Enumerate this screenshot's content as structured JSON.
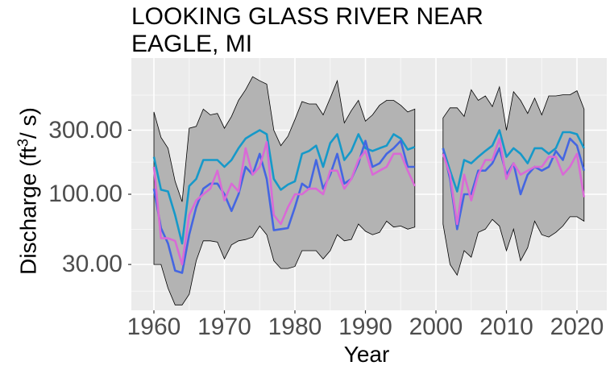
{
  "chart_data": {
    "type": "line",
    "title": [
      "LOOKING GLASS RIVER NEAR",
      "EAGLE, MI"
    ],
    "xlabel": "Year",
    "ylabel": {
      "prefix": "Discharge (ft",
      "sup": "3",
      "suffix": "/ s)"
    },
    "yscale": "log",
    "ylim": [
      12,
      1000
    ],
    "xlim": [
      1957.5,
      2023.5
    ],
    "yticks": [
      30,
      100,
      300
    ],
    "ytick_labels": [
      "30.00",
      "100.00",
      "300.00"
    ],
    "xticks": [
      1960,
      1970,
      1980,
      1990,
      2000,
      2010,
      2020
    ],
    "xtick_labels": [
      "1960",
      "1970",
      "1980",
      "1990",
      "2000",
      "2010",
      "2020"
    ],
    "grid": true,
    "legend": "none",
    "colors": {
      "band": "#b3b3b3",
      "panel": "#ebebeb",
      "cyan": "#1699c9",
      "blue": "#4466e2",
      "magenta": "#d96ad6"
    },
    "segments": [
      {
        "x": [
          1960,
          1961,
          1962,
          1963,
          1964,
          1965,
          1966,
          1967,
          1968,
          1969,
          1970,
          1971,
          1972,
          1973,
          1974,
          1975,
          1976,
          1977,
          1978,
          1979,
          1980,
          1981,
          1982,
          1983,
          1984,
          1985,
          1986,
          1987,
          1988,
          1989,
          1990,
          1991,
          1992,
          1993,
          1994,
          1995,
          1996,
          1997
        ],
        "band_upper": [
          410,
          265,
          220,
          125,
          88,
          310,
          320,
          430,
          390,
          400,
          310,
          380,
          500,
          600,
          750,
          700,
          660,
          300,
          230,
          270,
          360,
          490,
          470,
          470,
          390,
          520,
          700,
          340,
          420,
          500,
          350,
          390,
          460,
          500,
          500,
          460,
          410,
          430
        ],
        "band_lower": [
          30,
          30,
          20,
          15,
          15,
          18,
          32,
          45,
          45,
          44,
          33,
          42,
          45,
          46,
          48,
          58,
          50,
          32,
          28,
          28,
          29,
          38,
          38,
          38,
          33,
          38,
          50,
          45,
          46,
          60,
          53,
          50,
          52,
          63,
          57,
          58,
          55,
          57
        ],
        "series": [
          {
            "color": "cyan",
            "values": [
              190,
              108,
              105,
              70,
              43,
              115,
              130,
              180,
              180,
              180,
              160,
              180,
              220,
              260,
              280,
              300,
              280,
              130,
              108,
              118,
              125,
              200,
              210,
              230,
              160,
              240,
              280,
              180,
              210,
              280,
              220,
              210,
              220,
              230,
              280,
              260,
              215,
              225
            ]
          },
          {
            "color": "blue",
            "values": [
              110,
              56,
              43,
              27,
              26,
              50,
              80,
              110,
              120,
              120,
              100,
              75,
              100,
              160,
              140,
              200,
              130,
              54,
              55,
              56,
              80,
              120,
              110,
              180,
              110,
              140,
              200,
              120,
              130,
              170,
              250,
              160,
              170,
              200,
              220,
              250,
              160,
              160
            ]
          },
          {
            "color": "magenta",
            "values": [
              160,
              47,
              47,
              45,
              30,
              70,
              90,
              100,
              110,
              150,
              90,
              120,
              105,
              220,
              140,
              160,
              245,
              70,
              60,
              80,
              100,
              100,
              110,
              110,
              100,
              150,
              150,
              110,
              130,
              180,
              210,
              140,
              150,
              160,
              200,
              200,
              150,
              115
            ]
          }
        ]
      },
      {
        "x": [
          2001,
          2002,
          2003,
          2004,
          2005,
          2006,
          2007,
          2008,
          2009,
          2010,
          2011,
          2012,
          2013,
          2014,
          2015,
          2016,
          2017,
          2018,
          2019,
          2020,
          2021
        ],
        "band_upper": [
          370,
          440,
          440,
          380,
          600,
          500,
          540,
          450,
          630,
          300,
          580,
          500,
          400,
          520,
          390,
          540,
          540,
          550,
          550,
          590,
          430
        ],
        "band_lower": [
          60,
          30,
          25,
          38,
          34,
          52,
          55,
          65,
          58,
          38,
          55,
          32,
          40,
          63,
          50,
          48,
          52,
          58,
          68,
          68,
          63
        ],
        "series": [
          {
            "color": "cyan",
            "values": [
              220,
              150,
              105,
              180,
              170,
              190,
              210,
              230,
              300,
              190,
              220,
              200,
              170,
              220,
              220,
              200,
              220,
              290,
              290,
              280,
              220
            ]
          },
          {
            "color": "blue",
            "values": [
              220,
              130,
              55,
              100,
              100,
              150,
              150,
              170,
              220,
              140,
              170,
              100,
              140,
              160,
              150,
              160,
              210,
              180,
              260,
              230,
              150
            ]
          },
          {
            "color": "magenta",
            "values": [
              200,
              140,
              60,
              140,
              90,
              140,
              180,
              180,
              260,
              130,
              170,
              140,
              150,
              160,
              160,
              190,
              190,
              140,
              160,
              200,
              95
            ]
          }
        ]
      }
    ]
  }
}
